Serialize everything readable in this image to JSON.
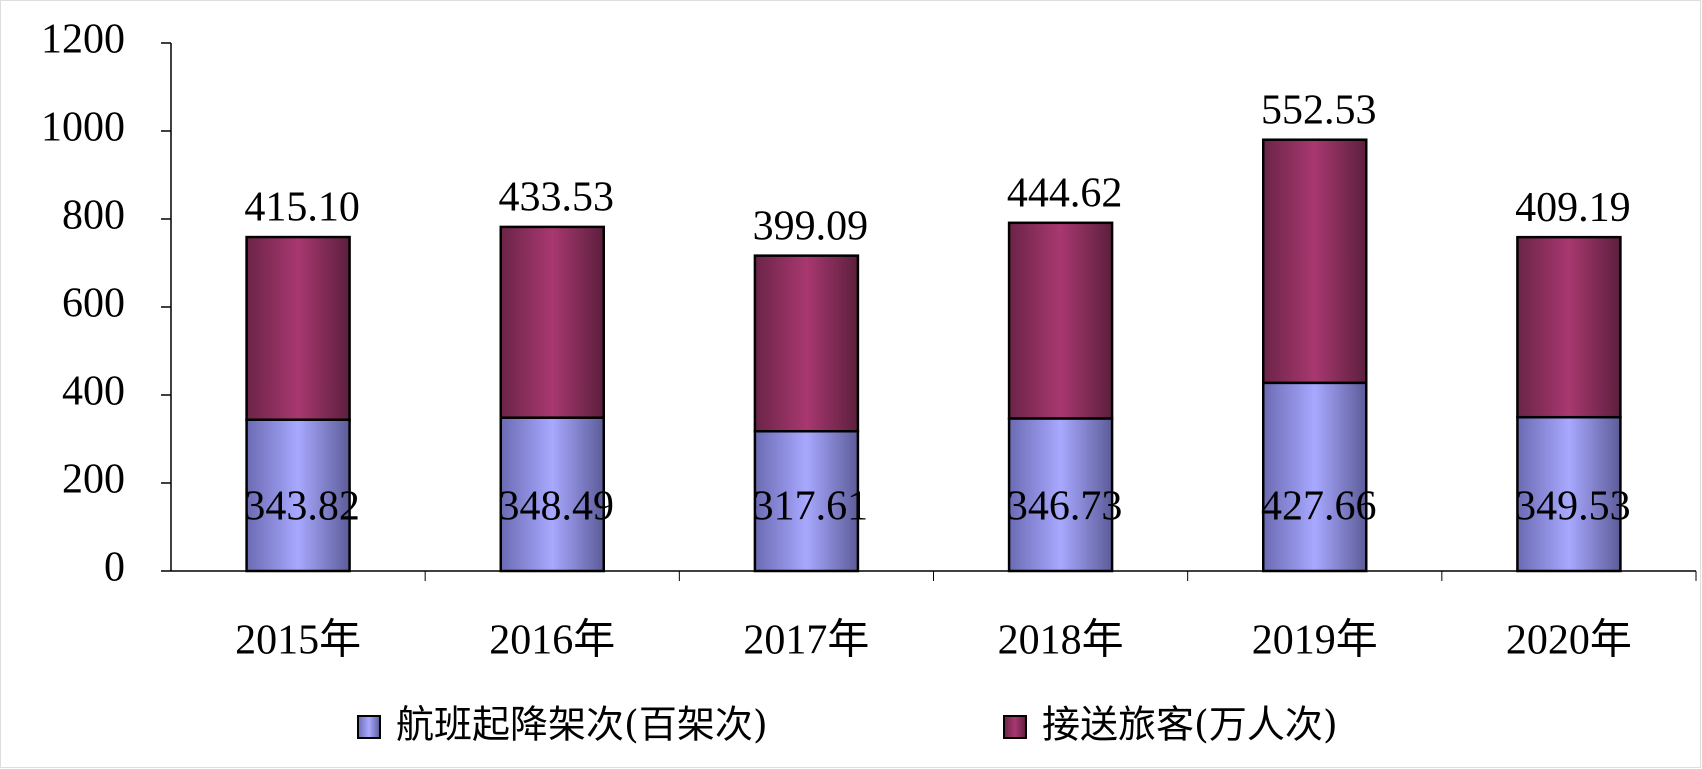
{
  "chart_data": {
    "type": "stacked_bar",
    "categories": [
      "2015年",
      "2016年",
      "2017年",
      "2018年",
      "2019年",
      "2020年"
    ],
    "series": [
      {
        "name": "航班起降架次(百架次)",
        "color": "#9999ff",
        "values": [
          343.82,
          348.49,
          317.61,
          346.73,
          427.66,
          349.53
        ]
      },
      {
        "name": "接送旅客(万人次)",
        "color": "#993366",
        "values": [
          415.1,
          433.53,
          399.09,
          444.62,
          552.53,
          409.19
        ],
        "value_labels": [
          "415.10",
          "433.53",
          "399.09",
          "444.62",
          "552.53",
          "409.19"
        ]
      }
    ],
    "ylim": [
      0,
      1200
    ],
    "yticks": [
      0,
      200,
      400,
      600,
      800,
      1000,
      1200
    ],
    "legend": "bottom"
  }
}
